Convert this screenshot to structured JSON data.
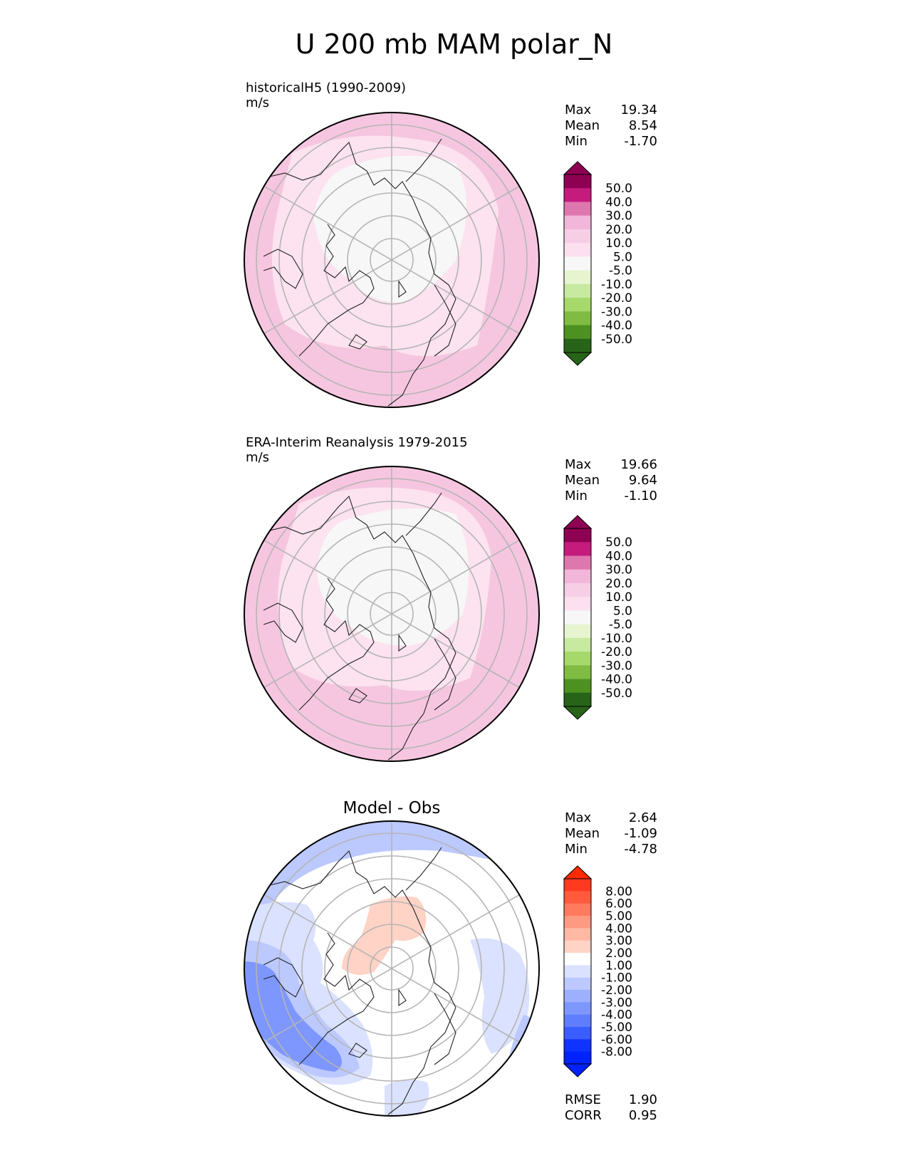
{
  "title": "U 200 mb MAM polar_N",
  "panels": [
    {
      "label": "historicalH5 (1990-2009)",
      "units": "m/s",
      "stats": [
        {
          "name": "Max",
          "value": "19.34"
        },
        {
          "name": "Mean",
          "value": "8.54"
        },
        {
          "name": "Min",
          "value": "-1.70"
        }
      ],
      "colorbar": {
        "ticks": [
          "50.0",
          "40.0",
          "30.0",
          "20.0",
          "10.0",
          "5.0",
          "-5.0",
          "-10.0",
          "-20.0",
          "-30.0",
          "-40.0",
          "-50.0"
        ],
        "colors": [
          "#8e0152",
          "#c51b7d",
          "#de77ae",
          "#f1b6da",
          "#f6cfe6",
          "#fde0ef",
          "#f7f7f7",
          "#e6f5d0",
          "#c7e9a0",
          "#a6d96a",
          "#7fbc41",
          "#4d9221",
          "#276419"
        ],
        "over_color": "#8e0152",
        "under_color": "#276419"
      }
    },
    {
      "label": "ERA-Interim Reanalysis 1979-2015",
      "units": "m/s",
      "stats": [
        {
          "name": "Max",
          "value": "19.66"
        },
        {
          "name": "Mean",
          "value": "9.64"
        },
        {
          "name": "Min",
          "value": "-1.10"
        }
      ],
      "colorbar": {
        "ticks": [
          "50.0",
          "40.0",
          "30.0",
          "20.0",
          "10.0",
          "5.0",
          "-5.0",
          "-10.0",
          "-20.0",
          "-30.0",
          "-40.0",
          "-50.0"
        ],
        "colors": [
          "#8e0152",
          "#c51b7d",
          "#de77ae",
          "#f1b6da",
          "#f6cfe6",
          "#fde0ef",
          "#f7f7f7",
          "#e6f5d0",
          "#c7e9a0",
          "#a6d96a",
          "#7fbc41",
          "#4d9221",
          "#276419"
        ],
        "over_color": "#8e0152",
        "under_color": "#276419"
      }
    },
    {
      "title": "Model - Obs",
      "stats": [
        {
          "name": "Max",
          "value": "2.64"
        },
        {
          "name": "Mean",
          "value": "-1.09"
        },
        {
          "name": "Min",
          "value": "-4.78"
        }
      ],
      "extra_stats": [
        {
          "name": "RMSE",
          "value": "1.90"
        },
        {
          "name": "CORR",
          "value": "0.95"
        }
      ],
      "colorbar": {
        "ticks": [
          "8.00",
          "6.00",
          "5.00",
          "4.00",
          "3.00",
          "2.00",
          "1.00",
          "-1.00",
          "-2.00",
          "-3.00",
          "-4.00",
          "-5.00",
          "-6.00",
          "-8.00"
        ],
        "colors": [
          "#ff3a1e",
          "#ff5a3c",
          "#ff7a5e",
          "#ff9a82",
          "#ffb8a4",
          "#ffd3c6",
          "#ffffff",
          "#dbe2ff",
          "#bcc9ff",
          "#9db0ff",
          "#7e97ff",
          "#5f7eff",
          "#3a5dff",
          "#1133ff",
          "#0022ff"
        ],
        "over_color": "#ff2a00",
        "under_color": "#0022ff"
      }
    }
  ]
}
